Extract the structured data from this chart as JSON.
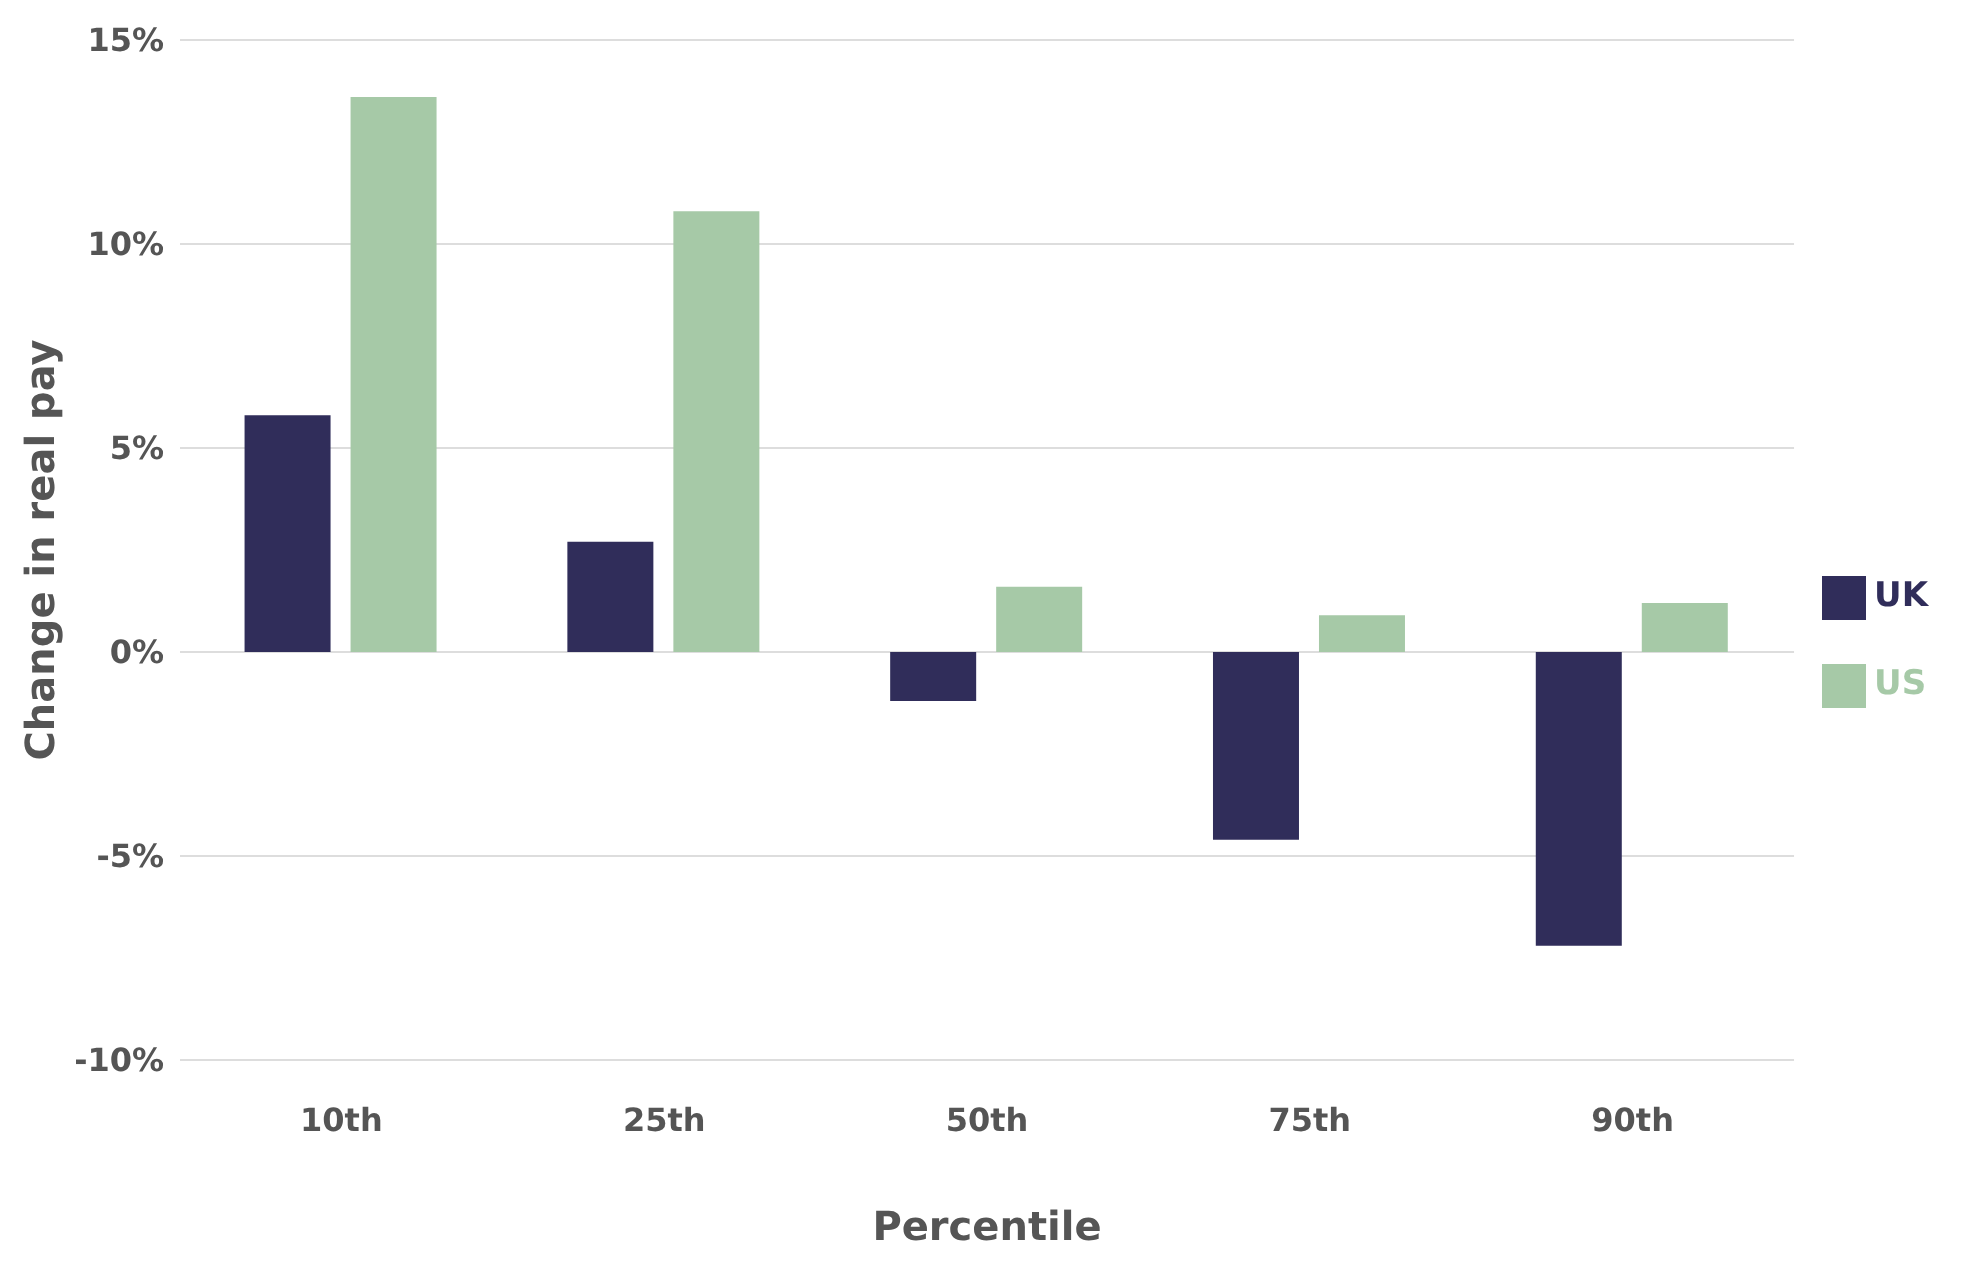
{
  "chart_data": {
    "type": "bar",
    "xlabel": "Percentile",
    "ylabel": "Change in real pay",
    "categories": [
      "10th",
      "25th",
      "50th",
      "75th",
      "90th"
    ],
    "series": [
      {
        "name": "UK",
        "color": "#302d5a",
        "values": [
          5.8,
          2.7,
          -1.2,
          -4.6,
          -7.2
        ]
      },
      {
        "name": "US",
        "color": "#a6c9a7",
        "values": [
          13.6,
          10.8,
          1.6,
          0.9,
          1.2
        ]
      }
    ],
    "ylim": [
      -10,
      15
    ],
    "yticks": [
      {
        "value": -10,
        "label": "-10%"
      },
      {
        "value": -5,
        "label": "-5%"
      },
      {
        "value": 0,
        "label": "0%"
      },
      {
        "value": 5,
        "label": "5%"
      },
      {
        "value": 10,
        "label": "10%"
      },
      {
        "value": 15,
        "label": "15%"
      }
    ],
    "grid": "y",
    "legend": "right"
  }
}
